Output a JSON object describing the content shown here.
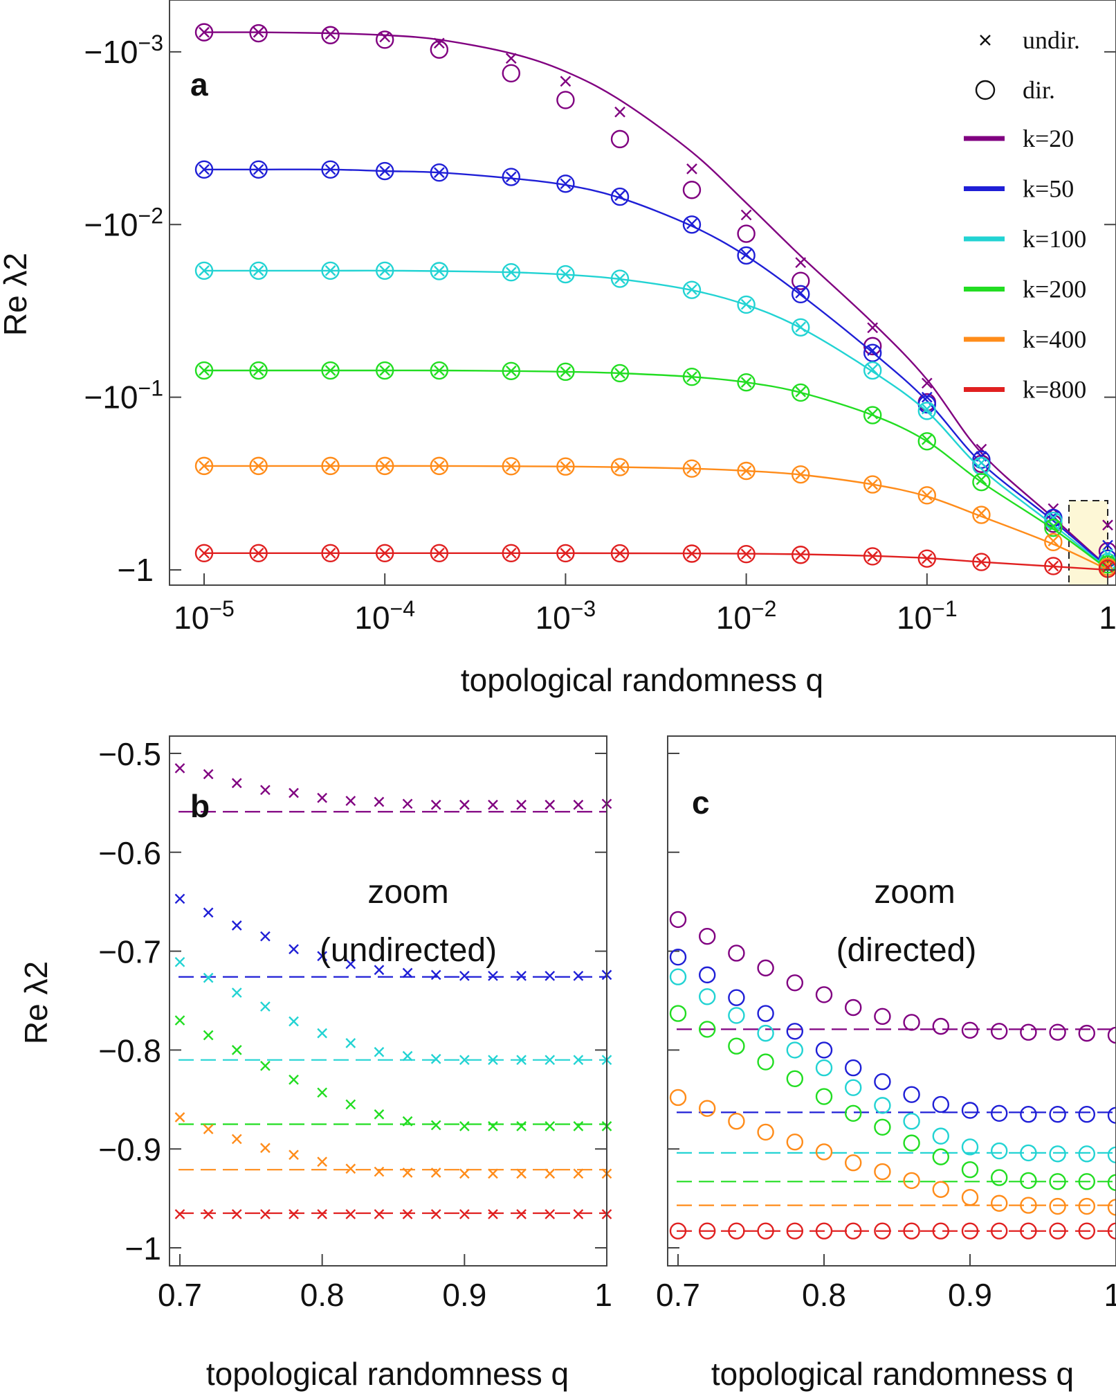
{
  "chart_data": [
    {
      "panel": "a",
      "type": "line",
      "xlabel": "topological randomness q",
      "ylabel": "Re λ2",
      "xscale": "log",
      "yscale": "log (negative)",
      "xlim": [
        7e-06,
        1
      ],
      "ylim": [
        -0.0007,
        -1.1
      ],
      "x_ticks": [
        "10^-5",
        "10^-4",
        "10^-3",
        "10^-2",
        "10^-1",
        "1"
      ],
      "y_ticks": [
        "-10^-3",
        "-10^-2",
        "-10^-1",
        "-1"
      ],
      "legend": {
        "position": "top-right",
        "markers": [
          {
            "symbol": "x",
            "label": "undir."
          },
          {
            "symbol": "o",
            "label": "dir."
          }
        ]
      },
      "q": [
        1e-05,
        2e-05,
        5e-05,
        0.0001,
        0.0002,
        0.0005,
        0.001,
        0.002,
        0.005,
        0.01,
        0.02,
        0.05,
        0.1,
        0.2,
        0.5,
        1
      ],
      "series": [
        {
          "name": "k=20",
          "color": "#800080",
          "undirected": [
            -0.00077,
            -0.00077,
            -0.00079,
            -0.00082,
            -0.00089,
            -0.00109,
            -0.00148,
            -0.00223,
            -0.00476,
            -0.0088,
            -0.0166,
            -0.0396,
            -0.0829,
            -0.2,
            -0.442,
            -0.55
          ],
          "directed": [
            -0.00077,
            -0.00078,
            -0.0008,
            -0.00085,
            -0.00097,
            -0.00133,
            -0.0019,
            -0.0032,
            -0.0063,
            -0.0113,
            -0.0212,
            -0.0506,
            -0.107,
            -0.243,
            -0.54,
            -0.78
          ],
          "fit": [
            -0.00077,
            -0.00077,
            -0.00078,
            -0.0008,
            -0.00085,
            -0.00102,
            -0.0013,
            -0.0019,
            -0.0038,
            -0.0075,
            -0.0152,
            -0.037,
            -0.079,
            -0.21,
            -0.5,
            -0.96
          ]
        },
        {
          "name": "k=50",
          "color": "#1f1fd6",
          "undirected": [
            -0.0048,
            -0.0048,
            -0.0048,
            -0.0049,
            -0.005,
            -0.0053,
            -0.0058,
            -0.0068,
            -0.0099,
            -0.0149,
            -0.0249,
            -0.0536,
            -0.1,
            -0.22,
            -0.49,
            -0.72
          ],
          "directed": [
            -0.0048,
            -0.0048,
            -0.0048,
            -0.0049,
            -0.005,
            -0.0053,
            -0.0058,
            -0.0069,
            -0.01,
            -0.0151,
            -0.0253,
            -0.0554,
            -0.11,
            -0.23,
            -0.5,
            -0.86
          ],
          "fit": [
            -0.0048,
            -0.0048,
            -0.0048,
            -0.0049,
            -0.005,
            -0.0054,
            -0.0059,
            -0.007,
            -0.0102,
            -0.0152,
            -0.0255,
            -0.055,
            -0.105,
            -0.24,
            -0.52,
            -0.97
          ]
        },
        {
          "name": "k=100",
          "color": "#22d3d3",
          "undirected": [
            -0.0185,
            -0.0185,
            -0.0185,
            -0.0185,
            -0.0186,
            -0.0189,
            -0.0194,
            -0.0206,
            -0.0238,
            -0.029,
            -0.0392,
            -0.069,
            -0.117,
            -0.24,
            -0.5,
            -0.81
          ],
          "directed": [
            -0.0185,
            -0.0185,
            -0.0185,
            -0.0185,
            -0.0186,
            -0.0189,
            -0.0194,
            -0.0206,
            -0.0239,
            -0.0291,
            -0.0394,
            -0.07,
            -0.12,
            -0.25,
            -0.52,
            -0.9
          ],
          "fit": [
            -0.0185,
            -0.0185,
            -0.0185,
            -0.0185,
            -0.0186,
            -0.0189,
            -0.0195,
            -0.0207,
            -0.024,
            -0.0292,
            -0.0397,
            -0.071,
            -0.121,
            -0.26,
            -0.55,
            -0.98
          ]
        },
        {
          "name": "k=200",
          "color": "#22dd22",
          "undirected": [
            -0.07,
            -0.07,
            -0.07,
            -0.07,
            -0.07,
            -0.0705,
            -0.0712,
            -0.0726,
            -0.0762,
            -0.082,
            -0.093,
            -0.125,
            -0.176,
            -0.3,
            -0.56,
            -0.88
          ],
          "directed": [
            -0.07,
            -0.07,
            -0.07,
            -0.07,
            -0.07,
            -0.0705,
            -0.0712,
            -0.0726,
            -0.0762,
            -0.082,
            -0.094,
            -0.127,
            -0.18,
            -0.31,
            -0.57,
            -0.93
          ],
          "fit": [
            -0.07,
            -0.07,
            -0.07,
            -0.07,
            -0.07,
            -0.0705,
            -0.0712,
            -0.0726,
            -0.0762,
            -0.082,
            -0.094,
            -0.127,
            -0.18,
            -0.31,
            -0.58,
            -0.99
          ]
        },
        {
          "name": "k=400",
          "color": "#ff8c1a",
          "undirected": [
            -0.25,
            -0.25,
            -0.25,
            -0.25,
            -0.25,
            -0.251,
            -0.252,
            -0.254,
            -0.259,
            -0.267,
            -0.28,
            -0.32,
            -0.37,
            -0.47,
            -0.68,
            -0.925
          ],
          "directed": [
            -0.25,
            -0.25,
            -0.25,
            -0.25,
            -0.25,
            -0.251,
            -0.252,
            -0.254,
            -0.259,
            -0.267,
            -0.28,
            -0.32,
            -0.37,
            -0.48,
            -0.69,
            -0.96
          ],
          "fit": [
            -0.25,
            -0.25,
            -0.25,
            -0.25,
            -0.25,
            -0.251,
            -0.252,
            -0.254,
            -0.259,
            -0.267,
            -0.281,
            -0.32,
            -0.375,
            -0.49,
            -0.71,
            -0.995
          ]
        },
        {
          "name": "k=800",
          "color": "#e02020",
          "undirected": [
            -0.8,
            -0.8,
            -0.8,
            -0.8,
            -0.8,
            -0.8,
            -0.801,
            -0.802,
            -0.805,
            -0.81,
            -0.818,
            -0.835,
            -0.86,
            -0.9,
            -0.95,
            -0.967
          ],
          "directed": [
            -0.8,
            -0.8,
            -0.8,
            -0.8,
            -0.8,
            -0.8,
            -0.801,
            -0.802,
            -0.805,
            -0.81,
            -0.818,
            -0.835,
            -0.86,
            -0.9,
            -0.95,
            -0.985
          ],
          "fit": [
            -0.8,
            -0.8,
            -0.8,
            -0.8,
            -0.8,
            -0.8,
            -0.8,
            -0.801,
            -0.803,
            -0.806,
            -0.812,
            -0.83,
            -0.855,
            -0.9,
            -0.955,
            -0.999
          ]
        }
      ]
    },
    {
      "panel": "b",
      "type": "scatter",
      "annotation": "zoom (undirected)",
      "xlabel": "topological randomness q",
      "ylabel": "Re λ2",
      "xlim": [
        0.7,
        1
      ],
      "ylim": [
        -0.99,
        -0.49
      ],
      "x_ticks": [
        0.7,
        0.8,
        0.9,
        1
      ],
      "y_ticks": [
        -0.5,
        -0.6,
        -0.7,
        -0.8,
        -0.9,
        -1
      ],
      "x": [
        0.7,
        0.72,
        0.74,
        0.76,
        0.78,
        0.8,
        0.82,
        0.84,
        0.86,
        0.88,
        0.9,
        0.92,
        0.94,
        0.96,
        0.98,
        1
      ],
      "series": [
        {
          "name": "k=20",
          "color": "#800080",
          "asymptote": -0.559,
          "values": [
            -0.515,
            -0.521,
            -0.53,
            -0.537,
            -0.54,
            -0.545,
            -0.548,
            -0.549,
            -0.551,
            -0.552,
            -0.552,
            -0.552,
            -0.552,
            -0.552,
            -0.552,
            -0.551
          ]
        },
        {
          "name": "k=50",
          "color": "#1f1fd6",
          "asymptote": -0.726,
          "values": [
            -0.647,
            -0.661,
            -0.674,
            -0.685,
            -0.698,
            -0.705,
            -0.713,
            -0.719,
            -0.722,
            -0.724,
            -0.725,
            -0.725,
            -0.725,
            -0.725,
            -0.725,
            -0.724
          ]
        },
        {
          "name": "k=100",
          "color": "#22d3d3",
          "asymptote": -0.81,
          "values": [
            -0.711,
            -0.727,
            -0.742,
            -0.756,
            -0.771,
            -0.783,
            -0.793,
            -0.802,
            -0.806,
            -0.809,
            -0.81,
            -0.81,
            -0.81,
            -0.81,
            -0.81,
            -0.81
          ]
        },
        {
          "name": "k=200",
          "color": "#22dd22",
          "asymptote": -0.875,
          "values": [
            -0.77,
            -0.785,
            -0.8,
            -0.816,
            -0.83,
            -0.843,
            -0.855,
            -0.865,
            -0.872,
            -0.876,
            -0.877,
            -0.877,
            -0.877,
            -0.877,
            -0.877,
            -0.877
          ]
        },
        {
          "name": "k=400",
          "color": "#ff8c1a",
          "asymptote": -0.921,
          "values": [
            -0.868,
            -0.88,
            -0.89,
            -0.899,
            -0.906,
            -0.913,
            -0.92,
            -0.923,
            -0.924,
            -0.924,
            -0.925,
            -0.925,
            -0.925,
            -0.925,
            -0.925,
            -0.925
          ]
        },
        {
          "name": "k=800",
          "color": "#e02020",
          "asymptote": -0.965,
          "values": [
            -0.966,
            -0.966,
            -0.966,
            -0.966,
            -0.966,
            -0.966,
            -0.966,
            -0.966,
            -0.966,
            -0.966,
            -0.966,
            -0.966,
            -0.966,
            -0.966,
            -0.966,
            -0.966
          ]
        }
      ]
    },
    {
      "panel": "c",
      "type": "scatter",
      "annotation": "zoom (directed)",
      "xlabel": "topological randomness q",
      "ylabel": "",
      "xlim": [
        0.7,
        1
      ],
      "ylim": [
        -0.99,
        -0.49
      ],
      "x_ticks": [
        0.7,
        0.8,
        0.9,
        1
      ],
      "x": [
        0.7,
        0.72,
        0.74,
        0.76,
        0.78,
        0.8,
        0.82,
        0.84,
        0.86,
        0.88,
        0.9,
        0.92,
        0.94,
        0.96,
        0.98,
        1
      ],
      "series": [
        {
          "name": "k=20",
          "color": "#800080",
          "asymptote": -0.779,
          "values": [
            -0.668,
            -0.685,
            -0.702,
            -0.717,
            -0.732,
            -0.744,
            -0.757,
            -0.766,
            -0.772,
            -0.776,
            -0.78,
            -0.781,
            -0.782,
            -0.782,
            -0.783,
            -0.785
          ]
        },
        {
          "name": "k=50",
          "color": "#1f1fd6",
          "asymptote": -0.863,
          "values": [
            -0.706,
            -0.724,
            -0.747,
            -0.763,
            -0.781,
            -0.8,
            -0.818,
            -0.832,
            -0.845,
            -0.855,
            -0.861,
            -0.864,
            -0.865,
            -0.865,
            -0.865,
            -0.866
          ]
        },
        {
          "name": "k=100",
          "color": "#22d3d3",
          "asymptote": -0.904,
          "values": [
            -0.726,
            -0.746,
            -0.765,
            -0.783,
            -0.8,
            -0.818,
            -0.838,
            -0.856,
            -0.872,
            -0.887,
            -0.898,
            -0.902,
            -0.904,
            -0.905,
            -0.905,
            -0.906
          ]
        },
        {
          "name": "k=200",
          "color": "#22dd22",
          "asymptote": -0.933,
          "values": [
            -0.763,
            -0.779,
            -0.796,
            -0.812,
            -0.829,
            -0.847,
            -0.864,
            -0.878,
            -0.894,
            -0.908,
            -0.921,
            -0.929,
            -0.932,
            -0.933,
            -0.933,
            -0.934
          ]
        },
        {
          "name": "k=400",
          "color": "#ff8c1a",
          "asymptote": -0.957,
          "values": [
            -0.848,
            -0.859,
            -0.872,
            -0.883,
            -0.893,
            -0.903,
            -0.914,
            -0.923,
            -0.932,
            -0.941,
            -0.949,
            -0.955,
            -0.957,
            -0.958,
            -0.958,
            -0.959
          ]
        },
        {
          "name": "k=800",
          "color": "#e02020",
          "asymptote": -0.983,
          "values": [
            -0.983,
            -0.983,
            -0.983,
            -0.983,
            -0.983,
            -0.983,
            -0.983,
            -0.983,
            -0.983,
            -0.983,
            -0.983,
            -0.983,
            -0.983,
            -0.983,
            -0.983,
            -0.983
          ]
        }
      ]
    }
  ],
  "labels": {
    "panel_a": "a",
    "panel_b": "b",
    "panel_c": "c",
    "x_title_a": "topological randomness q",
    "x_title_b": "topological randomness q",
    "x_title_c": "topological randomness q",
    "y_title_a": "Re λ2",
    "y_title_b": "Re λ2",
    "zoom_b_line1": "zoom",
    "zoom_b_line2": "(undirected)",
    "zoom_c_line1": "zoom",
    "zoom_c_line2": "(directed)",
    "legend_undir": "undir.",
    "legend_dir": "dir.",
    "legend_k": [
      "k=20",
      "k=50",
      "k=100",
      "k=200",
      "k=400",
      "k=800"
    ],
    "a_ytick_labels": [
      "−10",
      "−10",
      "−10",
      "−1"
    ],
    "a_ytick_exps": [
      "−3",
      "−2",
      "−1",
      ""
    ],
    "a_xtick_bases": [
      "10",
      "10",
      "10",
      "10",
      "10",
      "1"
    ],
    "a_xtick_exps": [
      "−5",
      "−4",
      "−3",
      "−2",
      "−1",
      ""
    ],
    "bc_ytick_labels": [
      "−0.5",
      "−0.6",
      "−0.7",
      "−0.8",
      "−0.9",
      "−1"
    ],
    "bc_xtick_labels": [
      "0.7",
      "0.8",
      "0.9",
      "1"
    ]
  }
}
